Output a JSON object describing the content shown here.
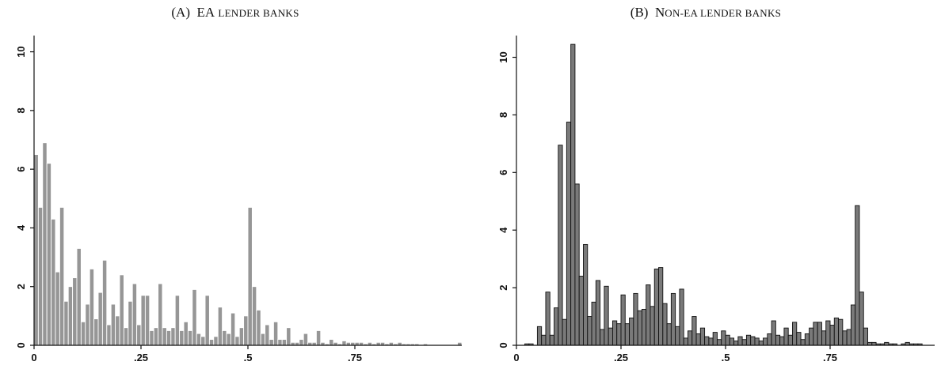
{
  "chart_data": [
    {
      "type": "bar",
      "panel": "A",
      "title_prefix": "(A)",
      "title_main": "EA",
      "title_small": "LENDER BANKS",
      "xlabel": "",
      "ylabel": "",
      "xlim": [
        0,
        1
      ],
      "ylim": [
        0,
        10.5
      ],
      "x_ticks": [
        0,
        0.25,
        0.5,
        0.75
      ],
      "x_tick_labels": [
        "0",
        ".25",
        ".5",
        ".75"
      ],
      "y_ticks": [
        0,
        2,
        4,
        6,
        8,
        10
      ],
      "y_tick_labels": [
        "0",
        "2",
        "4",
        "6",
        "8",
        "10"
      ],
      "bar_color": "#969696",
      "bar_stroke": "#ffffff",
      "bin_width": 0.01,
      "x": [
        0.005,
        0.015,
        0.025,
        0.035,
        0.045,
        0.055,
        0.065,
        0.075,
        0.085,
        0.095,
        0.105,
        0.115,
        0.125,
        0.135,
        0.145,
        0.155,
        0.165,
        0.175,
        0.185,
        0.195,
        0.205,
        0.215,
        0.225,
        0.235,
        0.245,
        0.255,
        0.265,
        0.275,
        0.285,
        0.295,
        0.305,
        0.315,
        0.325,
        0.335,
        0.345,
        0.355,
        0.365,
        0.375,
        0.385,
        0.395,
        0.405,
        0.415,
        0.425,
        0.435,
        0.445,
        0.455,
        0.465,
        0.475,
        0.485,
        0.495,
        0.505,
        0.515,
        0.525,
        0.535,
        0.545,
        0.555,
        0.565,
        0.575,
        0.585,
        0.595,
        0.605,
        0.615,
        0.625,
        0.635,
        0.645,
        0.655,
        0.665,
        0.675,
        0.685,
        0.695,
        0.705,
        0.715,
        0.725,
        0.735,
        0.745,
        0.755,
        0.765,
        0.775,
        0.785,
        0.795,
        0.805,
        0.815,
        0.825,
        0.835,
        0.845,
        0.855,
        0.865,
        0.875,
        0.885,
        0.895,
        0.905,
        0.915,
        0.925,
        0.935,
        0.945,
        0.955,
        0.965,
        0.975,
        0.985,
        0.995
      ],
      "values": [
        6.5,
        4.7,
        6.9,
        6.2,
        4.3,
        2.5,
        4.7,
        1.5,
        2.0,
        2.3,
        3.3,
        0.8,
        1.4,
        2.6,
        0.9,
        1.8,
        2.9,
        0.7,
        1.4,
        1.0,
        2.4,
        0.6,
        1.5,
        2.1,
        0.7,
        1.7,
        1.7,
        0.5,
        0.6,
        2.1,
        0.6,
        0.5,
        0.6,
        1.7,
        0.5,
        0.8,
        0.5,
        1.9,
        0.4,
        0.3,
        1.7,
        0.2,
        0.3,
        1.3,
        0.5,
        0.4,
        1.1,
        0.3,
        0.6,
        1.0,
        4.7,
        2.0,
        1.2,
        0.4,
        0.7,
        0.2,
        0.8,
        0.2,
        0.2,
        0.6,
        0.1,
        0.1,
        0.2,
        0.4,
        0.1,
        0.1,
        0.5,
        0.1,
        0.05,
        0.2,
        0.1,
        0.05,
        0.15,
        0.1,
        0.1,
        0.1,
        0.1,
        0.05,
        0.1,
        0.05,
        0.1,
        0.1,
        0.05,
        0.1,
        0.05,
        0.1,
        0.05,
        0.05,
        0.05,
        0.05,
        0.02,
        0.05,
        0.02,
        0.02,
        0.02,
        0.02,
        0.01,
        0.01,
        0.01,
        0.1
      ]
    },
    {
      "type": "bar",
      "panel": "B",
      "title_prefix": "(B)",
      "title_main": "N",
      "title_small": "ON-EA LENDER BANKS",
      "xlabel": "",
      "ylabel": "",
      "xlim": [
        0,
        1
      ],
      "ylim": [
        0,
        10.7
      ],
      "x_ticks": [
        0,
        0.25,
        0.5,
        0.75
      ],
      "x_tick_labels": [
        "0",
        ".25",
        ".5",
        ".75"
      ],
      "y_ticks": [
        0,
        2,
        4,
        6,
        8,
        10
      ],
      "y_tick_labels": [
        "0",
        "2",
        "4",
        "6",
        "8",
        "10"
      ],
      "bar_color": "#7a7a7a",
      "bar_stroke": "#111111",
      "bin_width": 0.01,
      "x": [
        0.005,
        0.015,
        0.025,
        0.035,
        0.045,
        0.055,
        0.065,
        0.075,
        0.085,
        0.095,
        0.105,
        0.115,
        0.125,
        0.135,
        0.145,
        0.155,
        0.165,
        0.175,
        0.185,
        0.195,
        0.205,
        0.215,
        0.225,
        0.235,
        0.245,
        0.255,
        0.265,
        0.275,
        0.285,
        0.295,
        0.305,
        0.315,
        0.325,
        0.335,
        0.345,
        0.355,
        0.365,
        0.375,
        0.385,
        0.395,
        0.405,
        0.415,
        0.425,
        0.435,
        0.445,
        0.455,
        0.465,
        0.475,
        0.485,
        0.495,
        0.505,
        0.515,
        0.525,
        0.535,
        0.545,
        0.555,
        0.565,
        0.575,
        0.585,
        0.595,
        0.605,
        0.615,
        0.625,
        0.635,
        0.645,
        0.655,
        0.665,
        0.675,
        0.685,
        0.695,
        0.705,
        0.715,
        0.725,
        0.735,
        0.745,
        0.755,
        0.765,
        0.775,
        0.785,
        0.795,
        0.805,
        0.815,
        0.825,
        0.835,
        0.845,
        0.855,
        0.865,
        0.875,
        0.885,
        0.895,
        0.905,
        0.915,
        0.925,
        0.935,
        0.945,
        0.955,
        0.965,
        0.975,
        0.985,
        0.995
      ],
      "values": [
        0,
        0,
        0.05,
        0.05,
        0,
        0.65,
        0.35,
        1.85,
        0.35,
        1.3,
        6.95,
        0.9,
        7.75,
        10.45,
        5.6,
        2.4,
        3.5,
        1.0,
        1.5,
        2.25,
        0.55,
        2.05,
        0.6,
        0.85,
        0.75,
        1.75,
        0.75,
        0.95,
        1.8,
        1.2,
        1.25,
        2.1,
        1.35,
        2.65,
        2.7,
        1.45,
        0.75,
        1.8,
        0.65,
        1.95,
        0.25,
        0.5,
        1.0,
        0.4,
        0.6,
        0.3,
        0.25,
        0.45,
        0.2,
        0.5,
        0.35,
        0.25,
        0.15,
        0.3,
        0.2,
        0.35,
        0.3,
        0.25,
        0.15,
        0.25,
        0.4,
        0.85,
        0.35,
        0.3,
        0.6,
        0.35,
        0.8,
        0.45,
        0.2,
        0.4,
        0.6,
        0.8,
        0.8,
        0.5,
        0.85,
        0.7,
        0.95,
        0.9,
        0.5,
        0.55,
        1.4,
        4.85,
        1.85,
        0.6,
        0.1,
        0.1,
        0.05,
        0.05,
        0.1,
        0.05,
        0.05,
        0,
        0.05,
        0.1,
        0.05,
        0.05,
        0.05,
        0,
        0,
        0
      ]
    }
  ]
}
